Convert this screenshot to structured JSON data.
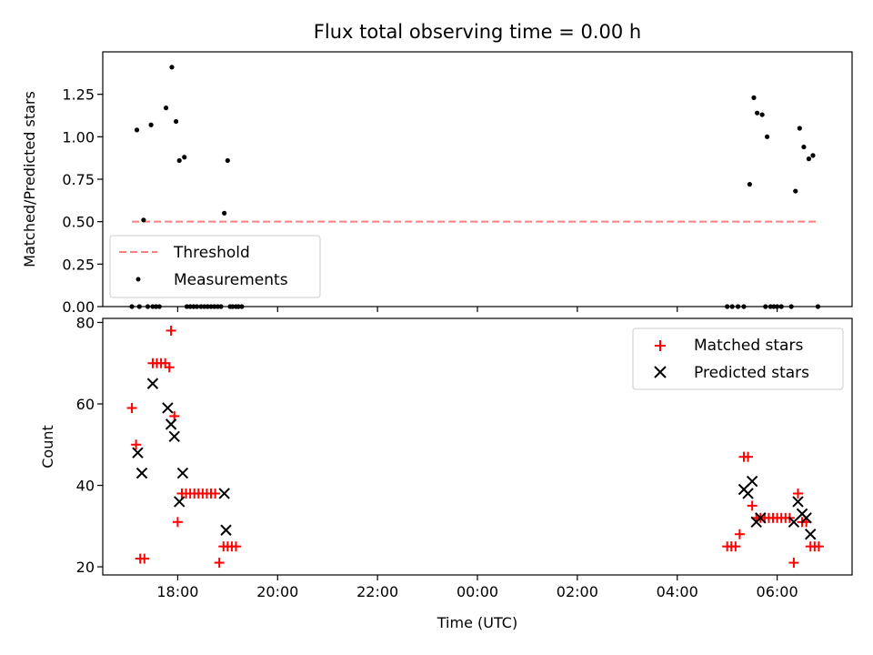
{
  "chart_data": [
    {
      "type": "scatter",
      "title": "Flux total observing time = 0.00 h",
      "xlabel": "",
      "ylabel": "Matched/Predicted stars",
      "xlim": [
        "16:30",
        "07:30"
      ],
      "ylim": [
        0,
        1.5
      ],
      "yticks": [
        "0.00",
        "0.25",
        "0.50",
        "0.75",
        "1.00",
        "1.25"
      ],
      "grid": false,
      "legend_position": "lower-left",
      "series": [
        {
          "name": "Threshold",
          "kind": "dashed-line",
          "color": "#ff8080",
          "x": [
            "17:05",
            "06:50"
          ],
          "y": [
            0.5,
            0.5
          ]
        },
        {
          "name": "Measurements",
          "kind": "points",
          "color": "#000000",
          "x": [
            "17:05",
            "17:11",
            "17:14",
            "17:19",
            "17:24",
            "17:28",
            "17:30",
            "17:34",
            "17:38",
            "17:46",
            "17:53",
            "17:58",
            "18:02",
            "18:08",
            "18:11",
            "18:15",
            "18:19",
            "18:23",
            "18:28",
            "18:32",
            "18:36",
            "18:40",
            "18:44",
            "18:48",
            "18:52",
            "18:56",
            "19:00",
            "19:03",
            "19:06",
            "19:10",
            "19:13",
            "19:17",
            "05:00",
            "05:06",
            "05:13",
            "05:20",
            "05:27",
            "05:32",
            "05:36",
            "05:42",
            "05:46",
            "05:48",
            "05:52",
            "05:56",
            "06:00",
            "06:05",
            "06:17",
            "06:22",
            "06:27",
            "06:32",
            "06:38",
            "06:43",
            "06:49"
          ],
          "y": [
            0.0,
            1.04,
            0.0,
            0.51,
            0.0,
            1.07,
            0.0,
            0.0,
            0.0,
            1.17,
            1.41,
            1.09,
            0.86,
            0.88,
            0.0,
            0.0,
            0.0,
            0.0,
            0.0,
            0.0,
            0.0,
            0.0,
            0.0,
            0.0,
            0.0,
            0.55,
            0.86,
            0.0,
            0.0,
            0.0,
            0.0,
            0.0,
            0.0,
            0.0,
            0.0,
            0.0,
            0.72,
            1.23,
            1.14,
            1.13,
            0.0,
            1.0,
            0.0,
            0.0,
            0.0,
            0.0,
            0.0,
            0.68,
            1.05,
            0.94,
            0.87,
            0.89,
            0.0
          ]
        }
      ]
    },
    {
      "type": "scatter",
      "title": "",
      "xlabel": "Time (UTC)",
      "ylabel": "Count",
      "xlim": [
        "16:30",
        "07:30"
      ],
      "ylim": [
        18,
        81
      ],
      "yticks": [
        "20",
        "40",
        "60",
        "80"
      ],
      "xticks": [
        "18:00",
        "20:00",
        "22:00",
        "00:00",
        "02:00",
        "04:00",
        "06:00"
      ],
      "grid": false,
      "legend_position": "upper-right",
      "series": [
        {
          "name": "Matched stars",
          "kind": "plus",
          "color": "#ff0000",
          "x": [
            "17:05",
            "17:10",
            "17:15",
            "17:20",
            "17:30",
            "17:35",
            "17:40",
            "17:45",
            "17:50",
            "17:52",
            "17:56",
            "18:00",
            "18:05",
            "18:10",
            "18:15",
            "18:20",
            "18:25",
            "18:30",
            "18:35",
            "18:40",
            "18:45",
            "18:50",
            "18:55",
            "19:00",
            "19:05",
            "19:10",
            "05:00",
            "05:05",
            "05:10",
            "05:15",
            "05:20",
            "05:25",
            "05:30",
            "05:35",
            "05:40",
            "05:45",
            "05:50",
            "05:55",
            "06:00",
            "06:05",
            "06:10",
            "06:15",
            "06:20",
            "06:25",
            "06:30",
            "06:35",
            "06:40",
            "06:45",
            "06:50"
          ],
          "y": [
            59,
            50,
            22,
            22,
            70,
            70,
            70,
            70,
            69,
            78,
            57,
            31,
            38,
            38,
            38,
            38,
            38,
            38,
            38,
            38,
            38,
            21,
            25,
            25,
            25,
            25,
            25,
            25,
            25,
            28,
            47,
            47,
            35,
            32,
            32,
            32,
            32,
            32,
            32,
            32,
            32,
            32,
            21,
            38,
            31,
            31,
            25,
            25,
            25
          ]
        },
        {
          "name": "Predicted stars",
          "kind": "x",
          "color": "#000000",
          "x": [
            "17:12",
            "17:17",
            "17:30",
            "17:48",
            "17:52",
            "17:56",
            "18:02",
            "18:06",
            "18:56",
            "18:58",
            "05:20",
            "05:25",
            "05:30",
            "05:35",
            "05:40",
            "06:20",
            "06:25",
            "06:30",
            "06:35",
            "06:40"
          ],
          "y": [
            48,
            43,
            65,
            59,
            55,
            52,
            36,
            43,
            38,
            29,
            39,
            38,
            41,
            31,
            32,
            31,
            36,
            33,
            32,
            28
          ]
        }
      ]
    }
  ]
}
